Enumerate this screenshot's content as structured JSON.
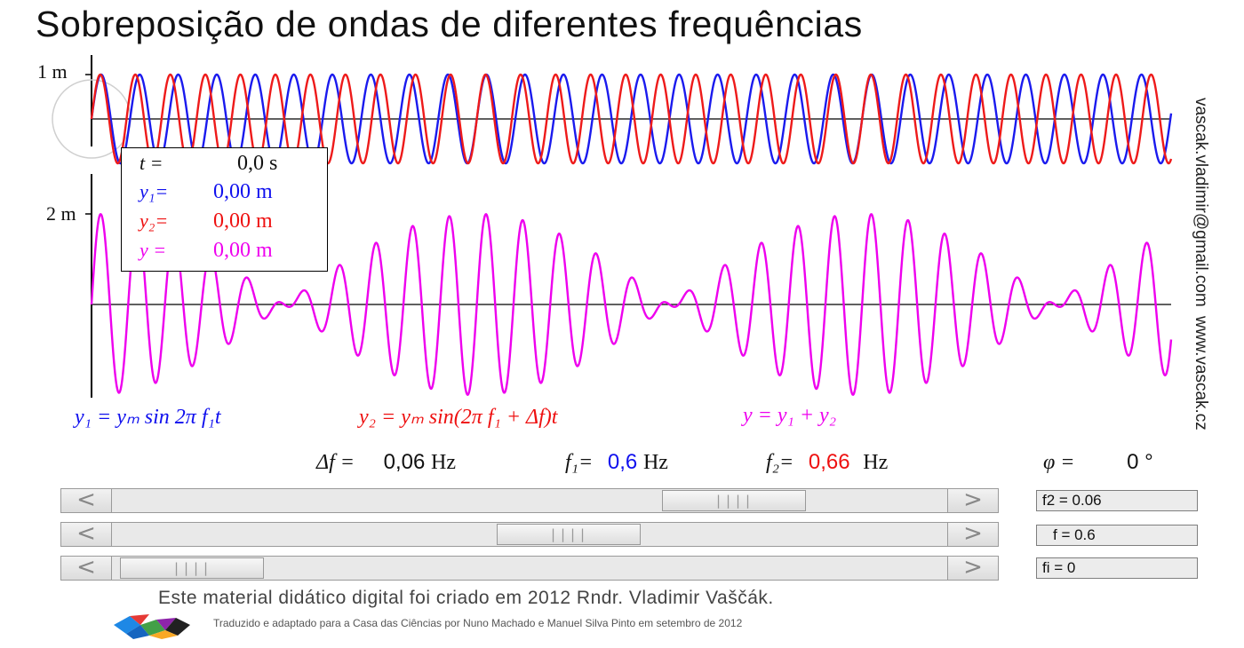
{
  "title": "Sobreposição de ondas de diferentes frequências",
  "axis": {
    "y1_scale_label": "1 m",
    "y_scale_label": "2 m"
  },
  "credits": {
    "email": "vascak.vladimir@gmail.com",
    "site": "www.vascak.cz"
  },
  "readout": {
    "t_label": "t =",
    "t_value": "0,0 s",
    "y1_label": "y₁=",
    "y1_value": "0,00 m",
    "y2_label": "y₂=",
    "y2_value": "0,00 m",
    "y_label": "y =",
    "y_value": "0,00 m"
  },
  "formulas": {
    "y1": "y₁ = yₘ sin 2π f₁t",
    "y2": "y₂ = yₘ sin(2π f₁ + Δf)t",
    "y": "y = y₁ + y₂"
  },
  "params": {
    "df_label": "Δf =",
    "df_value": "0,06",
    "df_unit": "Hz",
    "f1_label": "f₁=",
    "f1_value": "0,6",
    "f1_unit": "Hz",
    "f2_label": "f₂=",
    "f2_value": "0,66",
    "f2_unit": "Hz",
    "phi_label": "φ =",
    "phi_value": "0 °"
  },
  "sliders": [
    {
      "name": "f2",
      "field": "f2 = 0.06",
      "grip": "||||"
    },
    {
      "name": "f",
      "field": "f = 0.6",
      "grip": "||||"
    },
    {
      "name": "fi",
      "field": "fi = 0",
      "grip": "||||"
    }
  ],
  "arrows": {
    "left": "<",
    "right": ">"
  },
  "footer": {
    "line1": "Este material didático digital foi criado em 2012 Rndr. Vladimir Vaščák.",
    "line2": "Traduzido e adaptado para a Casa das Ciências por Nuno Machado e Manuel Silva Pinto em setembro de 2012"
  },
  "colors": {
    "wave1": "#1a1aee",
    "wave2": "#ee1a1a",
    "sum": "#ee00ee",
    "axis": "#000000"
  },
  "waves": {
    "f1": 0.6,
    "f2": 0.66,
    "amplitude_m": 1,
    "phase_deg": 0
  }
}
